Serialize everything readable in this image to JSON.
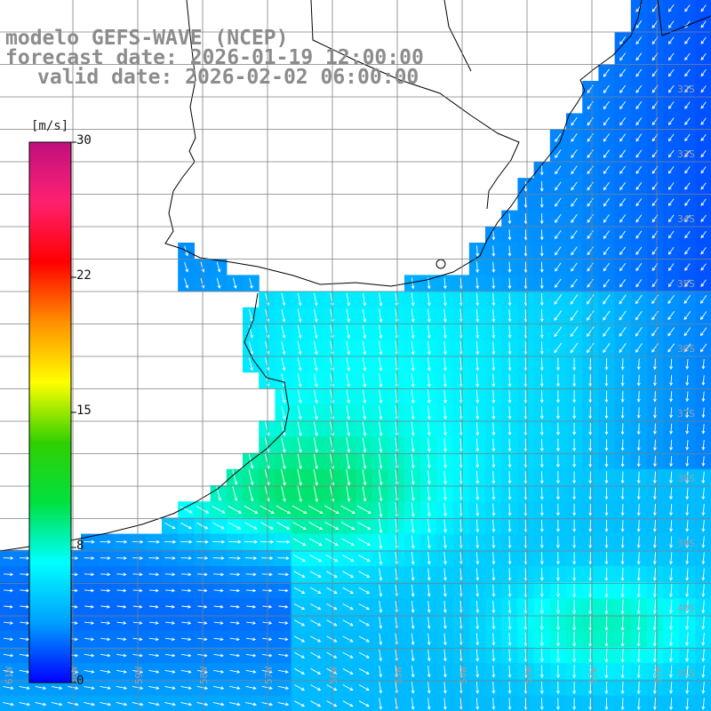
{
  "header": {
    "model_label": "modelo GEFS-WAVE (NCEP)",
    "forecast_label": "forecast date: 2026-01-19 12:00:00",
    "valid_label": "valid date: 2026-02-02 06:00:00"
  },
  "colorbar": {
    "unit": "[m/s]",
    "min": 0,
    "max": 30,
    "tick_labels": [
      "30",
      "22",
      "15",
      "8",
      "0"
    ],
    "tick_values": [
      30,
      22,
      15,
      8,
      0
    ],
    "colors": [
      "#0000ff",
      "#00a0ff",
      "#00ffff",
      "#00e040",
      "#30d000",
      "#ffff00",
      "#ff9000",
      "#ff0000",
      "#ff2070",
      "#c0107f"
    ]
  },
  "map": {
    "lat_labels": [
      "32S",
      "33S",
      "34S",
      "35S",
      "36S",
      "37S",
      "38S",
      "39S",
      "40S",
      "41S"
    ],
    "lon_labels": [
      "61W",
      "60W",
      "59W",
      "58W",
      "57W",
      "56W",
      "55W",
      "54W",
      "53W",
      "52W",
      "51W"
    ],
    "colors": {
      "land": "#ffffff",
      "coastline": "#000000",
      "grid": "#808080",
      "arrow": "#ffffff"
    }
  }
}
